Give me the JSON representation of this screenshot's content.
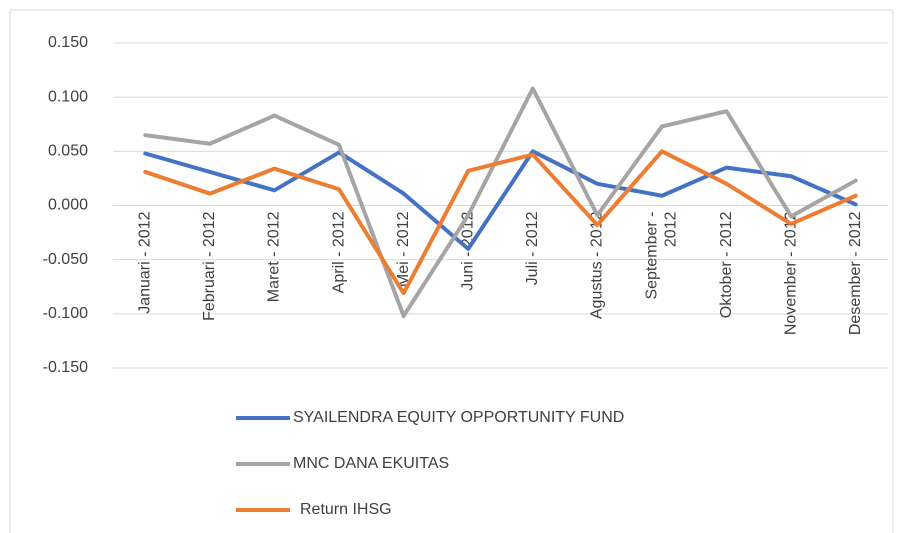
{
  "chart_data": {
    "type": "line",
    "categories": [
      "Januari - 2012",
      "Februari - 2012",
      "Maret - 2012",
      "April - 2012",
      "Mei - 2012",
      "Juni - 2012",
      "Juli - 2012",
      "Agustus - 2012",
      "September - 2012",
      "Oktober - 2012",
      "November - 2012",
      "Desember - 2012"
    ],
    "series": [
      {
        "name": "SYAILENDRA EQUITY OPPORTUNITY FUND",
        "color": "#4472c4",
        "values": [
          0.048,
          0.031,
          0.014,
          0.049,
          0.011,
          -0.04,
          0.05,
          0.02,
          0.009,
          0.035,
          0.027,
          0.001
        ]
      },
      {
        "name": "MNC DANA EKUITAS",
        "color": "#a5a5a5",
        "values": [
          0.065,
          0.057,
          0.083,
          0.056,
          -0.102,
          -0.009,
          0.108,
          -0.009,
          0.073,
          0.087,
          -0.01,
          0.023
        ]
      },
      {
        "name": "Return IHSG",
        "color": "#ed7d31",
        "values": [
          0.031,
          0.011,
          0.034,
          0.015,
          -0.081,
          0.032,
          0.047,
          -0.018,
          0.05,
          0.02,
          -0.017,
          0.009
        ]
      }
    ],
    "ylim": [
      -0.15,
      0.15
    ],
    "yticks": [
      {
        "value": -0.15,
        "label": "-0.150"
      },
      {
        "value": -0.1,
        "label": "-0.100"
      },
      {
        "value": -0.05,
        "label": "-0.050"
      },
      {
        "value": 0,
        "label": "0.000"
      },
      {
        "value": 0.05,
        "label": "0.050"
      },
      {
        "value": 0.1,
        "label": "0.100"
      },
      {
        "value": 0.15,
        "label": "0.150"
      }
    ],
    "grid": true,
    "legend": "bottom"
  }
}
